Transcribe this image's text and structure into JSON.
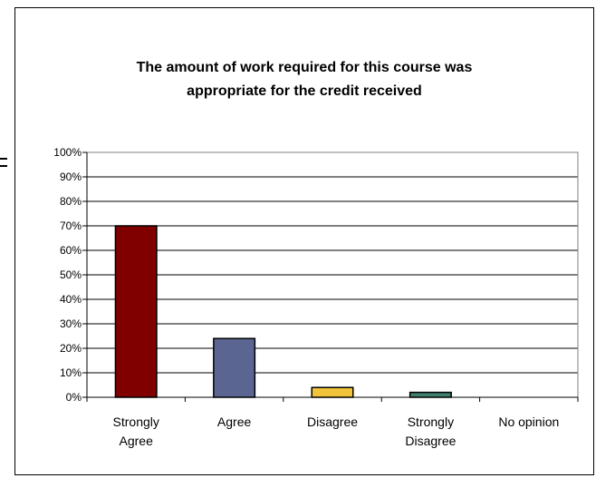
{
  "chart_data": {
    "type": "bar",
    "title": "The amount of work required for this course was appropriate for the credit received",
    "title_lines": [
      "The amount of work required for this course was",
      "appropriate for the credit received"
    ],
    "categories": [
      "Strongly Agree",
      "Agree",
      "Disagree",
      "Strongly Disagree",
      "No opinion"
    ],
    "category_lines": [
      [
        "Strongly",
        "Agree"
      ],
      [
        "Agree"
      ],
      [
        "Disagree"
      ],
      [
        "Strongly",
        "Disagree"
      ],
      [
        "No opinion"
      ]
    ],
    "values": [
      0.7,
      0.24,
      0.04,
      0.02,
      0.0
    ],
    "colors": [
      "#800000",
      "#5B6591",
      "#F2C43B",
      "#3F7F6F",
      "#999999"
    ],
    "ylim": [
      0,
      1
    ],
    "yticks": [
      "0%",
      "10%",
      "20%",
      "30%",
      "40%",
      "50%",
      "60%",
      "70%",
      "80%",
      "90%",
      "100%"
    ],
    "grid": true,
    "legend": "none",
    "xlabel": "",
    "ylabel": ""
  }
}
